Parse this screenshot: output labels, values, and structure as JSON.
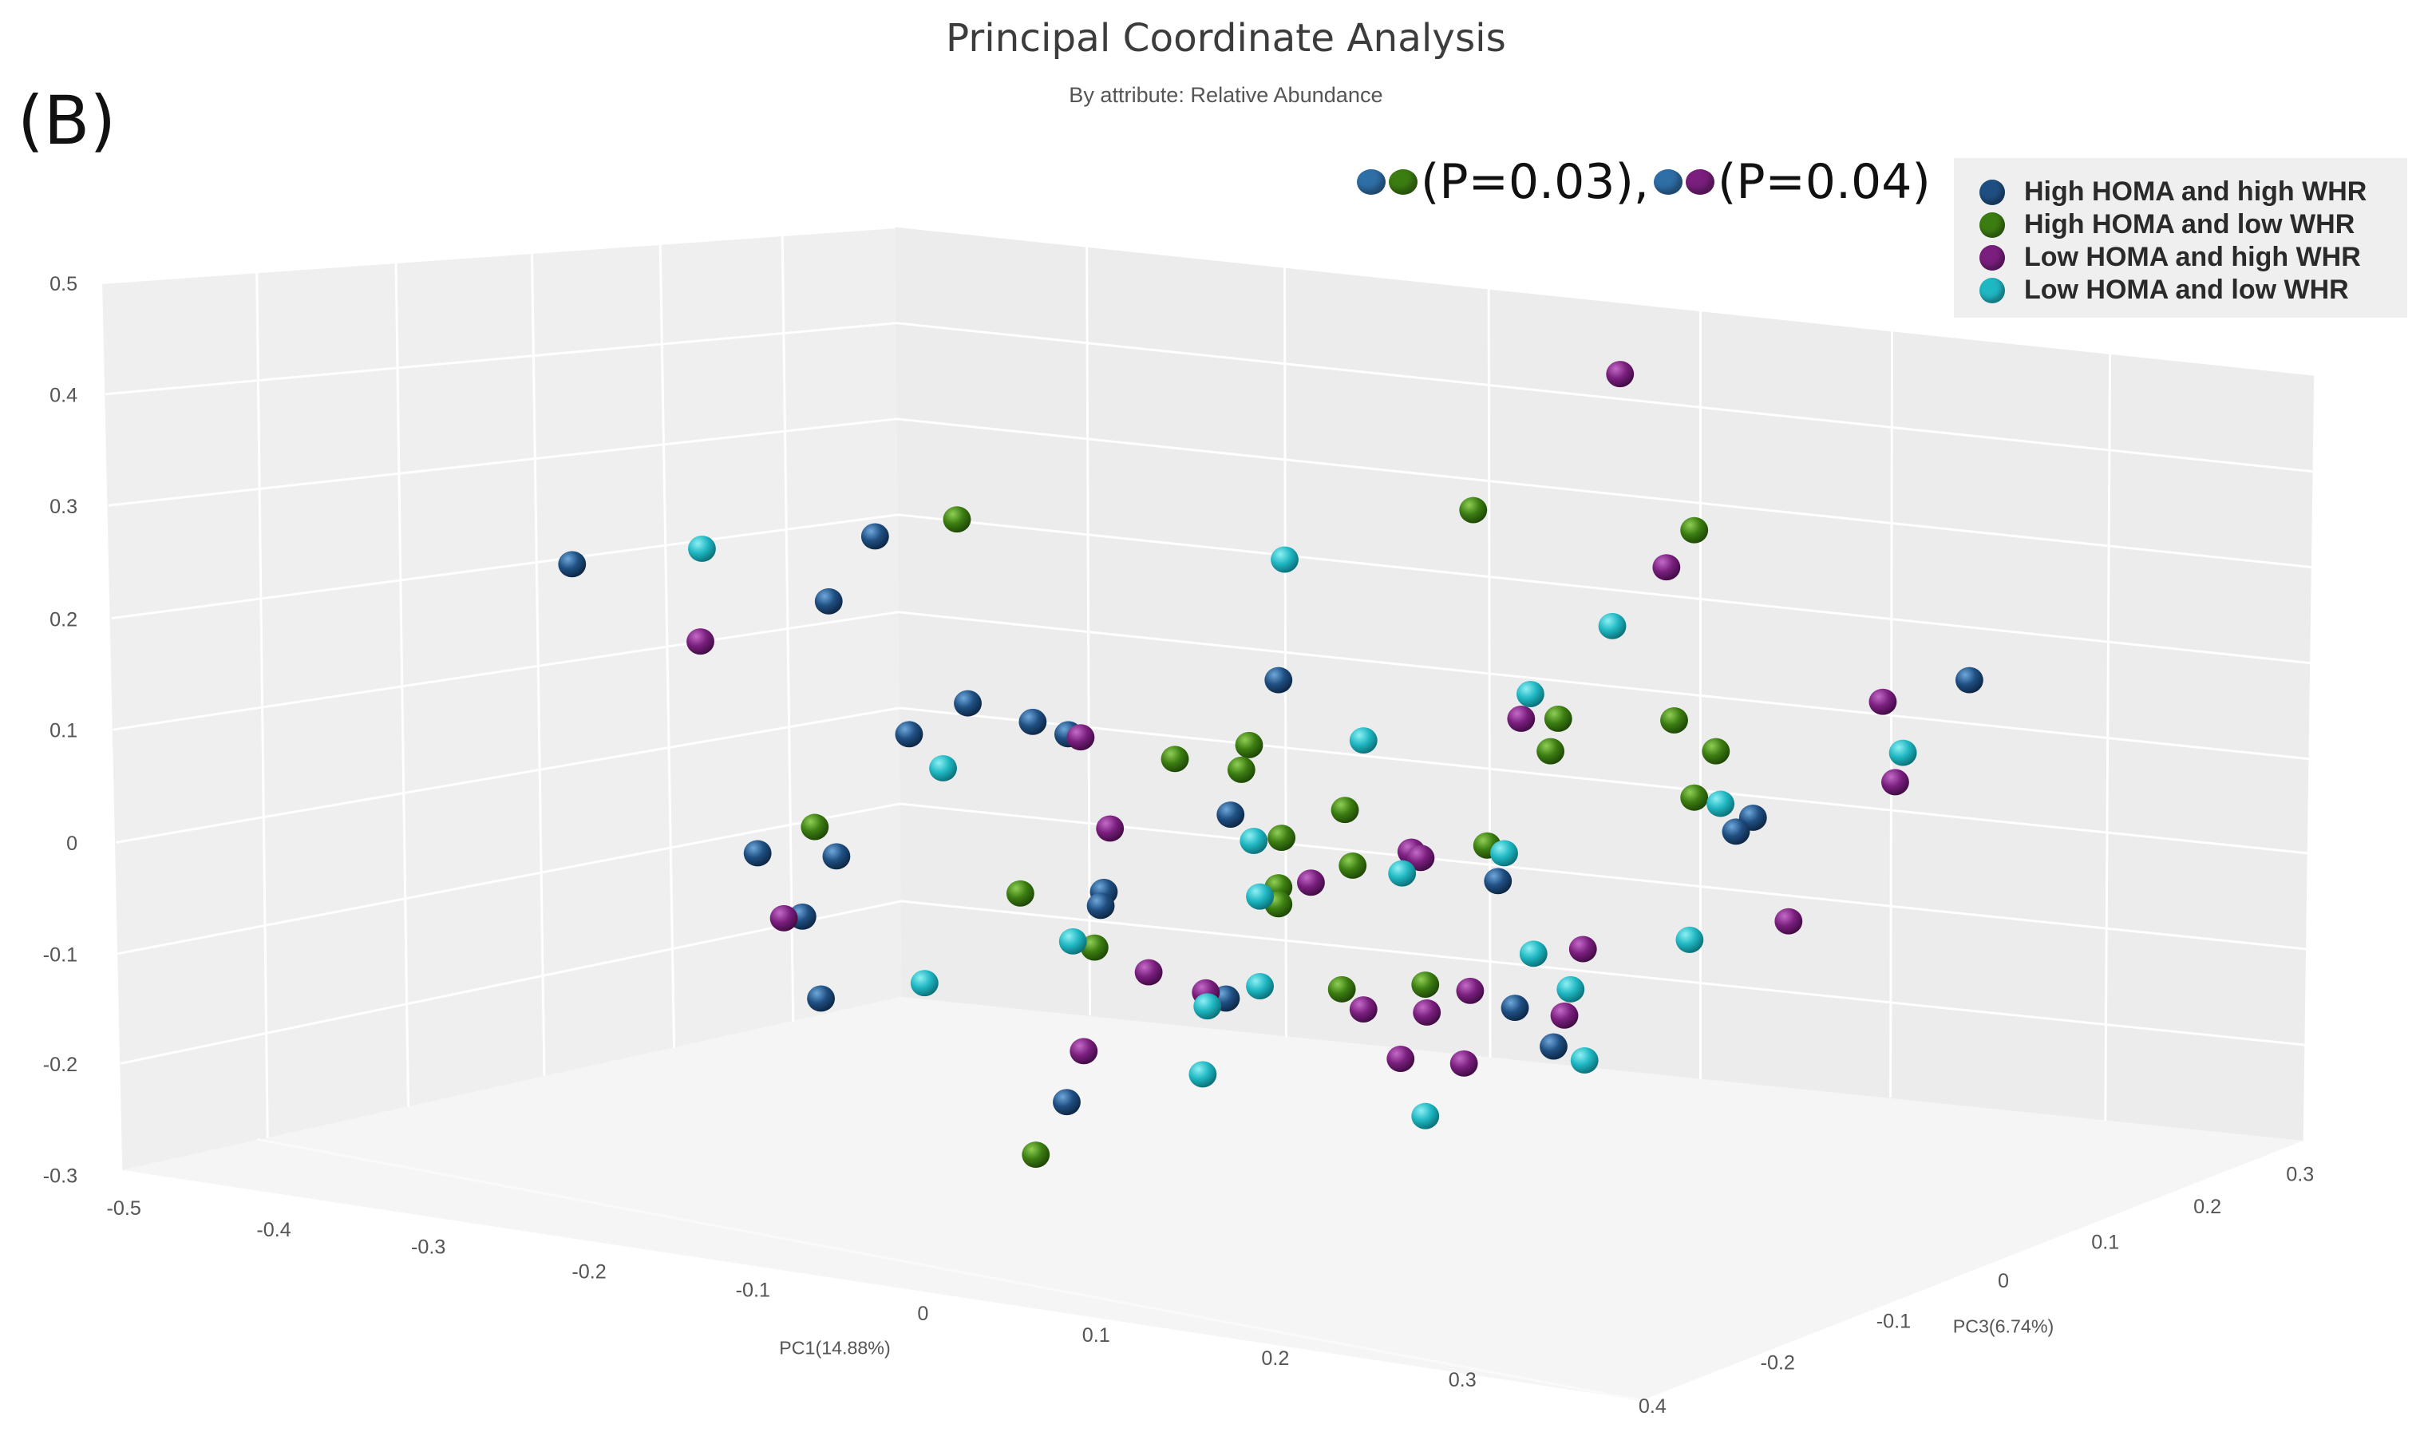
{
  "panel_label": "(B)",
  "annotation": {
    "pair1_colors": [
      "#2f6fa8",
      "#3c7d12"
    ],
    "pair1_text": "(P=0.03),",
    "pair2_colors": [
      "#2f6fa8",
      "#7a1f7e"
    ],
    "pair2_text": "(P=0.04)"
  },
  "chart_data": {
    "type": "scatter",
    "title": "Principal Coordinate Analysis",
    "subtitle": "By attribute: Relative Abundance",
    "axes": {
      "y": {
        "label": "",
        "range": [
          -0.3,
          0.5
        ],
        "ticks": [
          "0.5",
          "0.4",
          "0.3",
          "0.2",
          "0.1",
          "0",
          "-0.1",
          "-0.2",
          "-0.3"
        ]
      },
      "x": {
        "label": "PC1(14.88%)",
        "range": [
          -0.5,
          0.4
        ],
        "ticks": [
          "-0.5",
          "-0.4",
          "-0.3",
          "-0.2",
          "-0.1",
          "0",
          "0.1",
          "0.2",
          "0.3",
          "0.4"
        ]
      },
      "z": {
        "label": "PC3(6.74%)",
        "range": [
          -0.2,
          0.3
        ],
        "ticks": [
          "-0.2",
          "-0.1",
          "0",
          "0.1",
          "0.2",
          "0.3"
        ]
      }
    },
    "legend": [
      {
        "label": "High HOMA and high WHR",
        "color": "#1f4f82"
      },
      {
        "label": "High HOMA and low WHR",
        "color": "#3c7d12"
      },
      {
        "label": "Low HOMA and high WHR",
        "color": "#7a1f7e"
      },
      {
        "label": "Low HOMA and low WHR",
        "color": "#1fb7c2"
      }
    ],
    "series": [
      {
        "name": "High HOMA and high WHR",
        "color": "#1f4f82",
        "points": [
          [
            370,
            365
          ],
          [
            566,
            347
          ],
          [
            536,
            389
          ],
          [
            588,
            475
          ],
          [
            626,
            455
          ],
          [
            668,
            467
          ],
          [
            691,
            475
          ],
          [
            490,
            552
          ],
          [
            541,
            554
          ],
          [
            519,
            593
          ],
          [
            531,
            646
          ],
          [
            714,
            577
          ],
          [
            712,
            586
          ],
          [
            690,
            713
          ],
          [
            796,
            527
          ],
          [
            827,
            440
          ],
          [
            793,
            646
          ],
          [
            969,
            570
          ],
          [
            980,
            652
          ],
          [
            1005,
            677
          ],
          [
            1134,
            529
          ],
          [
            1123,
            538
          ],
          [
            1274,
            440
          ]
        ]
      },
      {
        "name": "High HOMA and low WHR",
        "color": "#3c7d12",
        "points": [
          [
            619,
            336
          ],
          [
            527,
            535
          ],
          [
            660,
            578
          ],
          [
            708,
            613
          ],
          [
            670,
            747
          ],
          [
            760,
            491
          ],
          [
            808,
            482
          ],
          [
            803,
            498
          ],
          [
            829,
            542
          ],
          [
            827,
            574
          ],
          [
            827,
            585
          ],
          [
            870,
            524
          ],
          [
            875,
            560
          ],
          [
            868,
            640
          ],
          [
            922,
            637
          ],
          [
            953,
            330
          ],
          [
            962,
            547
          ],
          [
            1008,
            465
          ],
          [
            1003,
            486
          ],
          [
            1096,
            343
          ],
          [
            1083,
            466
          ],
          [
            1110,
            486
          ],
          [
            1096,
            516
          ]
        ]
      },
      {
        "name": "Low HOMA and high WHR",
        "color": "#7a1f7e",
        "points": [
          [
            453,
            415
          ],
          [
            699,
            477
          ],
          [
            718,
            536
          ],
          [
            507,
            594
          ],
          [
            743,
            629
          ],
          [
            701,
            680
          ],
          [
            780,
            642
          ],
          [
            848,
            571
          ],
          [
            913,
            551
          ],
          [
            919,
            555
          ],
          [
            882,
            653
          ],
          [
            923,
            655
          ],
          [
            906,
            685
          ],
          [
            951,
            641
          ],
          [
            947,
            688
          ],
          [
            984,
            465
          ],
          [
            1024,
            614
          ],
          [
            1012,
            657
          ],
          [
            1048,
            242
          ],
          [
            1078,
            367
          ],
          [
            1157,
            596
          ],
          [
            1218,
            454
          ],
          [
            1226,
            506
          ]
        ]
      },
      {
        "name": "Low HOMA and low WHR",
        "color": "#1fb7c2",
        "points": [
          [
            454,
            355
          ],
          [
            610,
            497
          ],
          [
            598,
            636
          ],
          [
            694,
            609
          ],
          [
            781,
            651
          ],
          [
            778,
            695
          ],
          [
            815,
            638
          ],
          [
            811,
            544
          ],
          [
            815,
            580
          ],
          [
            831,
            362
          ],
          [
            882,
            479
          ],
          [
            907,
            565
          ],
          [
            973,
            552
          ],
          [
            990,
            449
          ],
          [
            992,
            617
          ],
          [
            1016,
            640
          ],
          [
            1025,
            686
          ],
          [
            922,
            722
          ],
          [
            1043,
            405
          ],
          [
            1093,
            608
          ],
          [
            1113,
            520
          ],
          [
            1231,
            487
          ]
        ]
      }
    ]
  }
}
